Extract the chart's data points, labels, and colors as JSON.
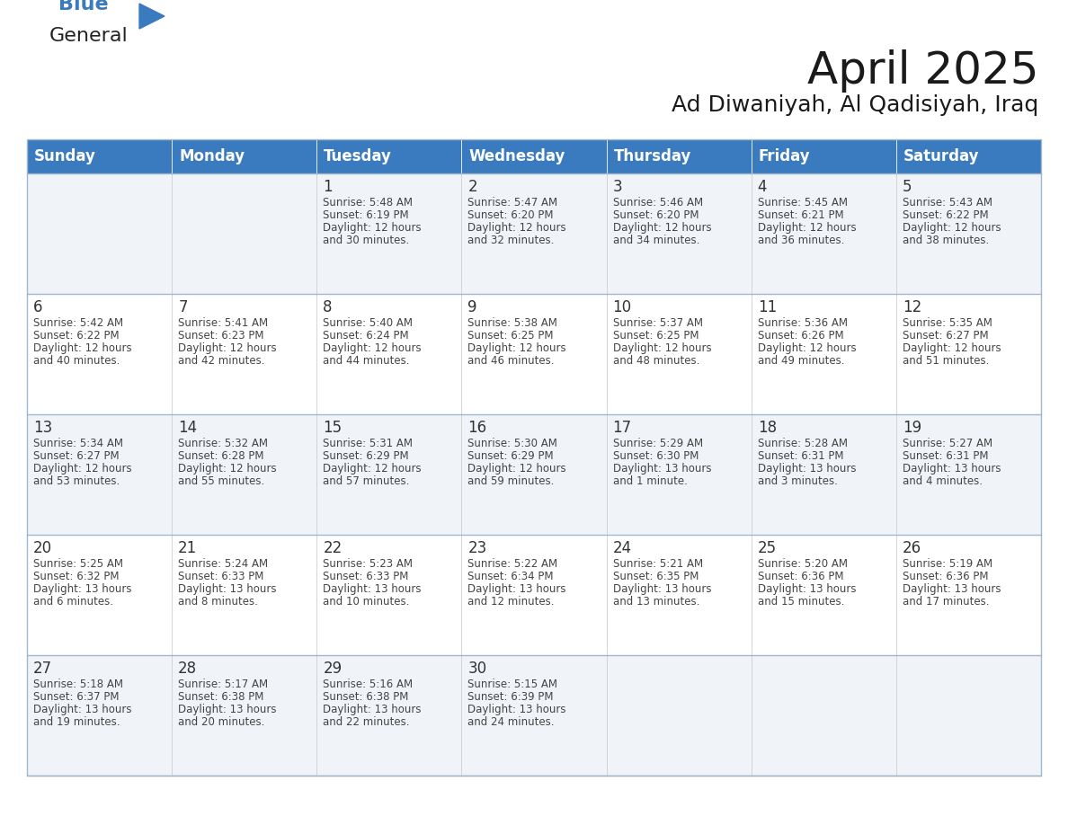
{
  "title": "April 2025",
  "subtitle": "Ad Diwaniyah, Al Qadisiyah, Iraq",
  "header_color": "#3a7bbf",
  "header_text_color": "#ffffff",
  "cell_bg_color": "#f5f5f5",
  "cell_alt_bg": "#ffffff",
  "text_color": "#333333",
  "day_headers": [
    "Sunday",
    "Monday",
    "Tuesday",
    "Wednesday",
    "Thursday",
    "Friday",
    "Saturday"
  ],
  "weeks": [
    [
      {
        "day": "",
        "info": ""
      },
      {
        "day": "",
        "info": ""
      },
      {
        "day": "1",
        "info": "Sunrise: 5:48 AM\nSunset: 6:19 PM\nDaylight: 12 hours\nand 30 minutes."
      },
      {
        "day": "2",
        "info": "Sunrise: 5:47 AM\nSunset: 6:20 PM\nDaylight: 12 hours\nand 32 minutes."
      },
      {
        "day": "3",
        "info": "Sunrise: 5:46 AM\nSunset: 6:20 PM\nDaylight: 12 hours\nand 34 minutes."
      },
      {
        "day": "4",
        "info": "Sunrise: 5:45 AM\nSunset: 6:21 PM\nDaylight: 12 hours\nand 36 minutes."
      },
      {
        "day": "5",
        "info": "Sunrise: 5:43 AM\nSunset: 6:22 PM\nDaylight: 12 hours\nand 38 minutes."
      }
    ],
    [
      {
        "day": "6",
        "info": "Sunrise: 5:42 AM\nSunset: 6:22 PM\nDaylight: 12 hours\nand 40 minutes."
      },
      {
        "day": "7",
        "info": "Sunrise: 5:41 AM\nSunset: 6:23 PM\nDaylight: 12 hours\nand 42 minutes."
      },
      {
        "day": "8",
        "info": "Sunrise: 5:40 AM\nSunset: 6:24 PM\nDaylight: 12 hours\nand 44 minutes."
      },
      {
        "day": "9",
        "info": "Sunrise: 5:38 AM\nSunset: 6:25 PM\nDaylight: 12 hours\nand 46 minutes."
      },
      {
        "day": "10",
        "info": "Sunrise: 5:37 AM\nSunset: 6:25 PM\nDaylight: 12 hours\nand 48 minutes."
      },
      {
        "day": "11",
        "info": "Sunrise: 5:36 AM\nSunset: 6:26 PM\nDaylight: 12 hours\nand 49 minutes."
      },
      {
        "day": "12",
        "info": "Sunrise: 5:35 AM\nSunset: 6:27 PM\nDaylight: 12 hours\nand 51 minutes."
      }
    ],
    [
      {
        "day": "13",
        "info": "Sunrise: 5:34 AM\nSunset: 6:27 PM\nDaylight: 12 hours\nand 53 minutes."
      },
      {
        "day": "14",
        "info": "Sunrise: 5:32 AM\nSunset: 6:28 PM\nDaylight: 12 hours\nand 55 minutes."
      },
      {
        "day": "15",
        "info": "Sunrise: 5:31 AM\nSunset: 6:29 PM\nDaylight: 12 hours\nand 57 minutes."
      },
      {
        "day": "16",
        "info": "Sunrise: 5:30 AM\nSunset: 6:29 PM\nDaylight: 12 hours\nand 59 minutes."
      },
      {
        "day": "17",
        "info": "Sunrise: 5:29 AM\nSunset: 6:30 PM\nDaylight: 13 hours\nand 1 minute."
      },
      {
        "day": "18",
        "info": "Sunrise: 5:28 AM\nSunset: 6:31 PM\nDaylight: 13 hours\nand 3 minutes."
      },
      {
        "day": "19",
        "info": "Sunrise: 5:27 AM\nSunset: 6:31 PM\nDaylight: 13 hours\nand 4 minutes."
      }
    ],
    [
      {
        "day": "20",
        "info": "Sunrise: 5:25 AM\nSunset: 6:32 PM\nDaylight: 13 hours\nand 6 minutes."
      },
      {
        "day": "21",
        "info": "Sunrise: 5:24 AM\nSunset: 6:33 PM\nDaylight: 13 hours\nand 8 minutes."
      },
      {
        "day": "22",
        "info": "Sunrise: 5:23 AM\nSunset: 6:33 PM\nDaylight: 13 hours\nand 10 minutes."
      },
      {
        "day": "23",
        "info": "Sunrise: 5:22 AM\nSunset: 6:34 PM\nDaylight: 13 hours\nand 12 minutes."
      },
      {
        "day": "24",
        "info": "Sunrise: 5:21 AM\nSunset: 6:35 PM\nDaylight: 13 hours\nand 13 minutes."
      },
      {
        "day": "25",
        "info": "Sunrise: 5:20 AM\nSunset: 6:36 PM\nDaylight: 13 hours\nand 15 minutes."
      },
      {
        "day": "26",
        "info": "Sunrise: 5:19 AM\nSunset: 6:36 PM\nDaylight: 13 hours\nand 17 minutes."
      }
    ],
    [
      {
        "day": "27",
        "info": "Sunrise: 5:18 AM\nSunset: 6:37 PM\nDaylight: 13 hours\nand 19 minutes."
      },
      {
        "day": "28",
        "info": "Sunrise: 5:17 AM\nSunset: 6:38 PM\nDaylight: 13 hours\nand 20 minutes."
      },
      {
        "day": "29",
        "info": "Sunrise: 5:16 AM\nSunset: 6:38 PM\nDaylight: 13 hours\nand 22 minutes."
      },
      {
        "day": "30",
        "info": "Sunrise: 5:15 AM\nSunset: 6:39 PM\nDaylight: 13 hours\nand 24 minutes."
      },
      {
        "day": "",
        "info": ""
      },
      {
        "day": "",
        "info": ""
      },
      {
        "day": "",
        "info": ""
      }
    ]
  ],
  "logo_text_general": "General",
  "logo_text_blue": "Blue",
  "logo_color_general": "#222222",
  "logo_color_blue": "#3a7bbf",
  "logo_triangle_color": "#3a7bbf"
}
